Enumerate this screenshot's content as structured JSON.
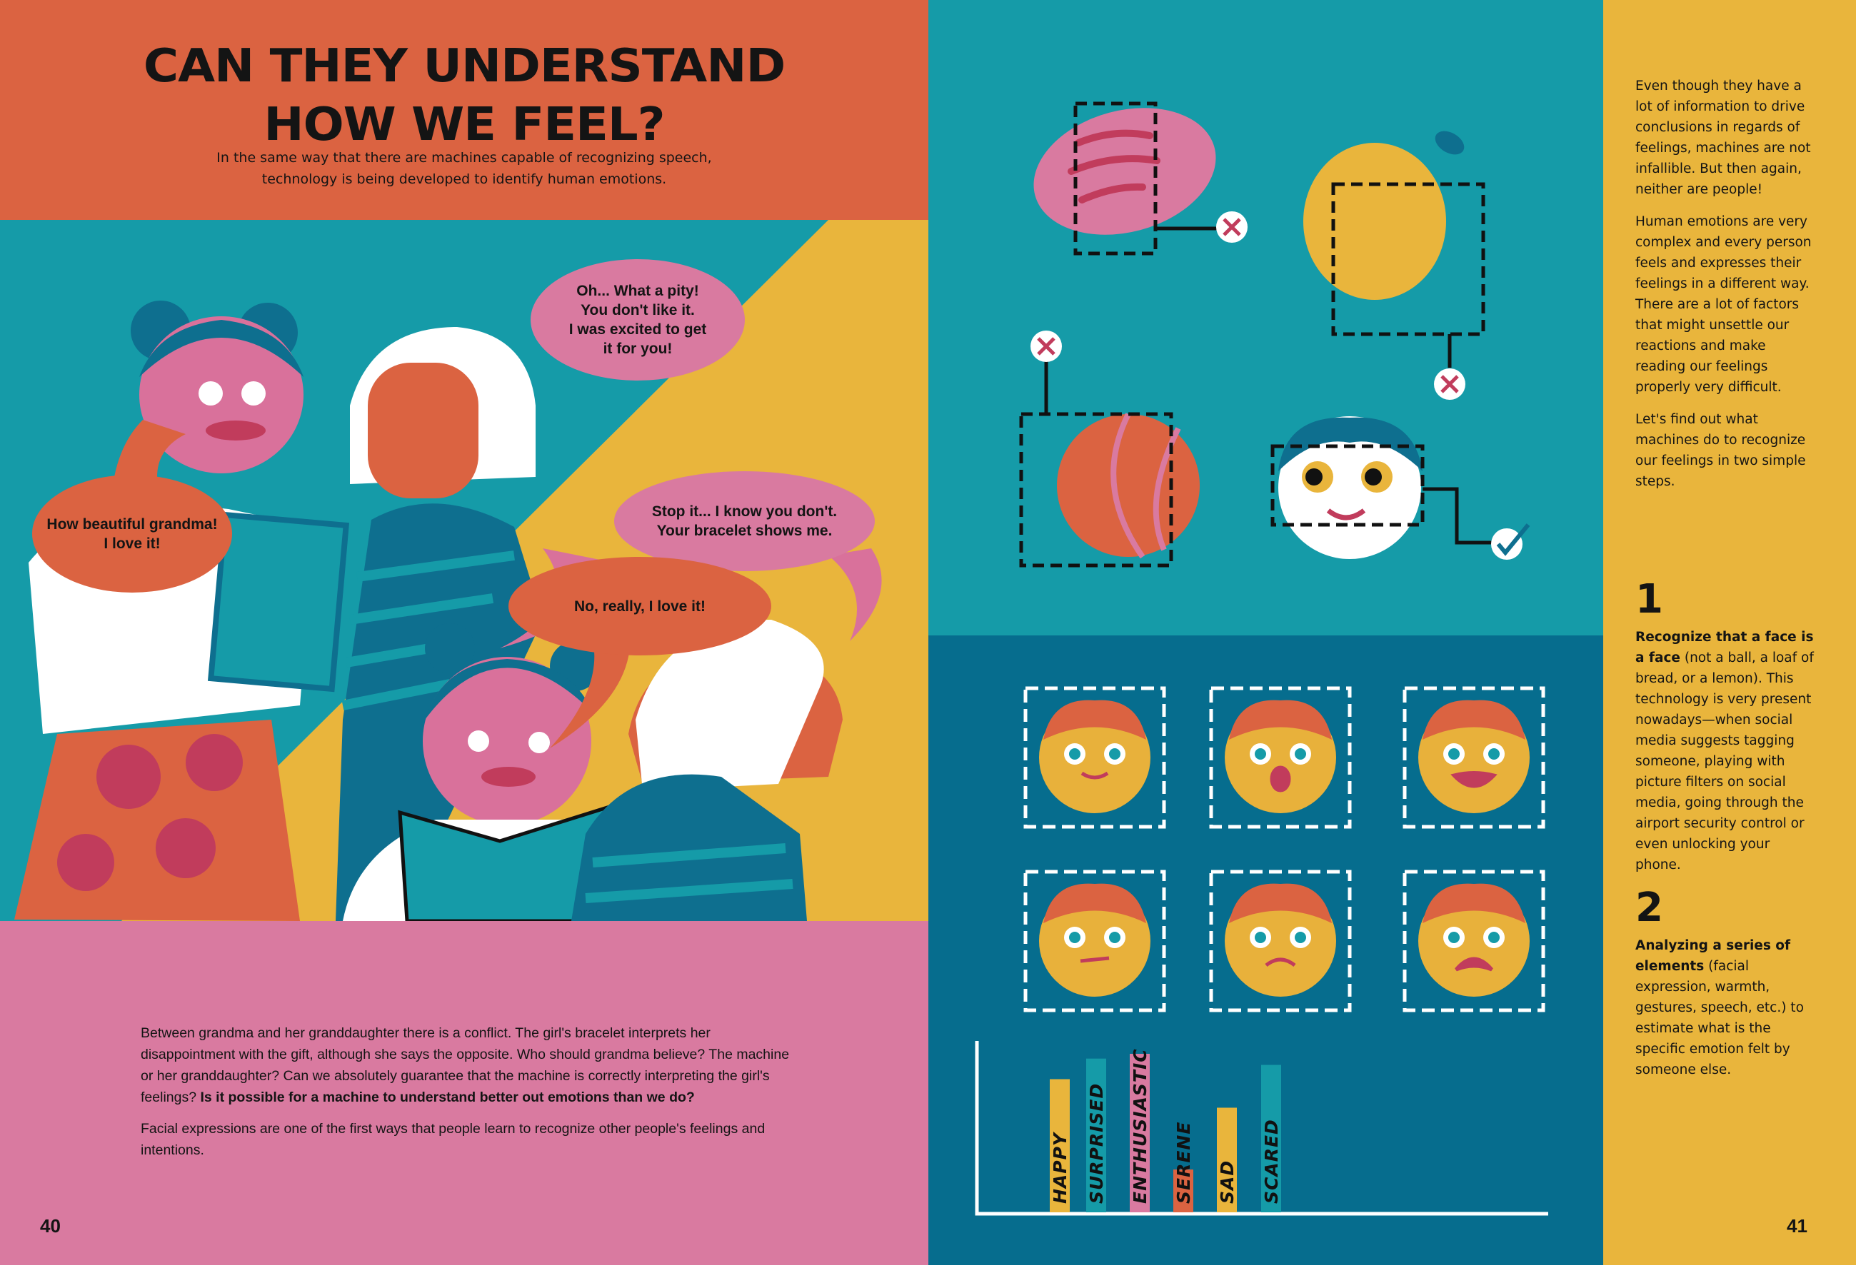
{
  "left_page": {
    "title_line1": "CAN THEY UNDERSTAND",
    "title_line2": "HOW WE FEEL?",
    "subtitle": "In the same way that there are machines capable of recognizing speech, technology is being developed to identify human emotions.",
    "bubbles": {
      "grandma_1": "Oh... What a pity!\nYou don't like it.\nI was excited to get\nit for you!",
      "girl_1": "How beautiful grandma!\nI love it!",
      "grandma_2": "Stop it... I know you don't.\nYour bracelet shows me.",
      "girl_2": "No, really, I love it!"
    },
    "paragraph1": "Between grandma and her granddaughter there is a conflict. The girl's bracelet interprets her disappointment with the gift, although she says the opposite. Who should grandma believe? The machine or her granddaughter? Can we absolutely guarantee that the machine is correctly interpreting the girl's feelings?",
    "paragraph1_bold": "Is it possible for a machine to understand better out emotions than we do?",
    "paragraph2": "Facial expressions are one of the first ways that people learn to recognize other people's feelings and intentions.",
    "page_number": "40"
  },
  "right_page": {
    "intro": [
      "Even though they have a lot of information to drive conclusions in regards of feelings, machines are not infallible. But then again, neither are people!",
      "Human emotions are very complex and every person feels and expresses their feelings in a different way. There are a lot of factors that might unsettle our reactions and make reading our feelings properly very difficult.",
      "Let's find out what machines do to recognize our feelings in two simple steps."
    ],
    "steps": [
      {
        "number": "1",
        "bold": "Recognize that a face is a face",
        "text": " (not a ball, a loaf of bread, or a lemon). This technology is very present nowadays—when social media suggests tagging someone, playing with picture filters on social media, going through the airport security control or even unlocking your phone."
      },
      {
        "number": "2",
        "bold": "Analyzing a series of elements",
        "text": " (facial expression, warmth, gestures, speech, etc.) to estimate what is the specific emotion felt by someone else."
      }
    ],
    "detection": [
      {
        "object": "bread",
        "result": "x-mark"
      },
      {
        "object": "lemon",
        "result": "x-mark"
      },
      {
        "object": "ball",
        "result": "x-mark"
      },
      {
        "object": "face",
        "result": "check-mark"
      }
    ],
    "page_number": "41"
  },
  "colors": {
    "orange": "#db6341",
    "teal": "#159ba8",
    "yellow": "#e9b53c",
    "pink": "#d97aa0",
    "dark_blue": "#066d8e",
    "face": "#e8b13b"
  },
  "chart_data": {
    "type": "bar",
    "categories": [
      "HAPPY",
      "SURPRISED",
      "ENTHUSIASTIC",
      "SERENE",
      "SAD",
      "SCARED"
    ],
    "values": [
      84,
      97,
      100,
      27,
      66,
      93
    ],
    "bar_colors": [
      "#e9b53c",
      "#159ba8",
      "#d97aa0",
      "#db6341",
      "#e9b53c",
      "#159ba8"
    ],
    "title": "",
    "xlabel": "",
    "ylabel": "",
    "ylim": [
      0,
      100
    ],
    "grid": false
  }
}
